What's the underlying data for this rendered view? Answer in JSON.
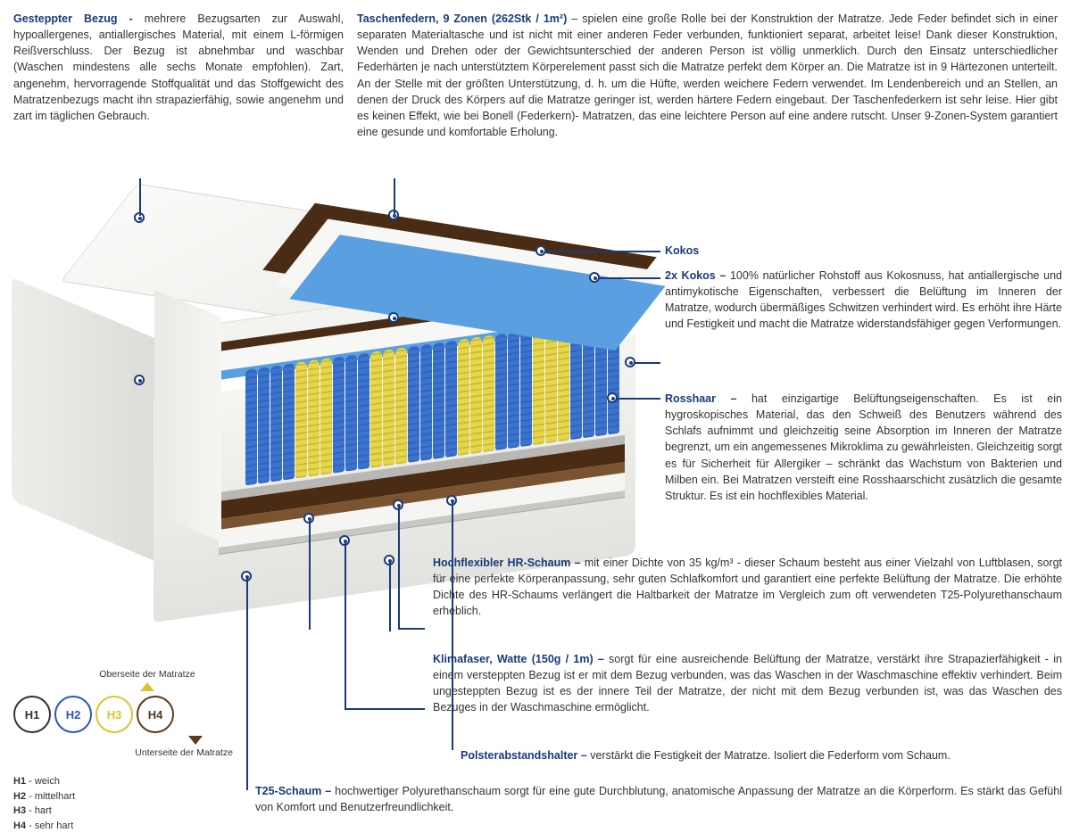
{
  "top_left": {
    "title": "Gesteppter Bezug -",
    "body": "mehrere Bezugsarten zur Auswahl, hypoallergenes, antiallergisches Material, mit einem L-förmigen Reißverschluss. Der Bezug ist abnehmbar und waschbar (Waschen mindestens alle sechs Monate empfohlen). Zart, angenehm, hervorragende Stoffqualität und das Stoffgewicht des Matratzenbezugs macht ihn strapazierfähig, sowie angenehm und zart im täglichen Gebrauch."
  },
  "top_right": {
    "title": "Taschenfedern, 9 Zonen (262Stk / 1m²)",
    "body": " – spielen eine große Rolle bei der Konstruktion der Matratze. Jede Feder befindet sich in einer separaten Materialtasche und ist nicht mit einer anderen Feder verbunden, funktioniert separat, arbeitet leise! Dank dieser Konstruktion, Wenden und Drehen oder der Gewichtsunterschied der anderen Person ist völlig unmerklich. Durch den Einsatz unterschiedlicher Federhärten je nach unterstütztem Körperelement passt sich die Matratze perfekt dem Körper an. Die Matratze ist in 9 Härtezonen unterteilt. An der Stelle mit der größten Unterstützung, d. h. um die Hüfte, werden weichere Federn verwendet. Im Lendenbereich und an Stellen, an denen der Druck des Körpers auf die Matratze geringer ist, werden härtere Federn eingebaut. Der Taschenfederkern ist sehr leise. Hier gibt es keinen Effekt, wie bei Bonell (Federkern)- Matratzen, das eine leichtere Person auf eine andere rutscht. Unser 9-Zonen-System garantiert eine gesunde und komfortable Erholung."
  },
  "callouts": {
    "kokos_single": "Kokos",
    "kokos2_title": "2x Kokos –",
    "kokos2_body": " 100% natürlicher Rohstoff aus Kokosnuss, hat antiallergische und antimykotische Eigenschaften, verbessert die Belüftung im Inneren der Matratze, wodurch übermäßiges Schwitzen verhindert wird. Es erhöht ihre Härte und Festigkeit und macht die Matratze widerstandsfähiger gegen Verformungen.",
    "rosshaar_title": "Rosshaar –",
    "rosshaar_body": " hat einzigartige Belüftungseigenschaften. Es ist ein hygroskopisches Material, das den Schweiß des Benutzers während des Schlafs aufnimmt und gleichzeitig seine Absorption im Inneren der Matratze begrenzt, um ein angemessenes Mikroklima zu gewährleisten. Gleichzeitig sorgt es für Sicherheit für Allergiker – schränkt das Wachstum von Bakterien und Milben ein. Bei Matratzen versteift eine Rosshaarschicht zusätzlich die gesamte Struktur. Es ist ein hochflexibles Material.",
    "hr_title": "Hochflexibler HR-Schaum –",
    "hr_body": " mit einer Dichte von 35 kg/m³ - dieser Schaum besteht aus einer Vielzahl von Luftblasen, sorgt für eine perfekte Körperanpassung, sehr guten Schlafkomfort und garantiert eine perfekte Belüftung der Matratze. Die erhöhte Dichte des HR-Schaums verlängert die Haltbarkeit der Matratze im Vergleich zum oft verwendeten T25-Polyurethanschaum erheblich.",
    "klima_title": "Klimafaser, Watte (150g / 1m) –",
    "klima_body": " sorgt für eine ausreichende Belüftung der Matratze, verstärkt ihre Strapazierfähigkeit - in einem versteppten Bezug ist er mit dem Bezug verbunden, was das Waschen in der Waschmaschine effektiv verhindert. Beim ungesteppten Bezug ist es der innere Teil der Matratze, der nicht mit dem Bezug verbunden ist, was das Waschen des Bezuges in der Waschmaschine ermöglicht.",
    "polster_title": "Polsterabstandshalter –",
    "polster_body": " verstärkt die Festigkeit der Matratze. Isoliert die Federform vom Schaum.",
    "t25_title": "T25-Schaum –",
    "t25_body": " hochwertiger Polyurethanschaum sorgt für eine gute Durchblutung, anatomische Anpassung der Matratze an die Körperform. Es stärkt das Gefühl von Komfort und Benutzerfreundlichkeit."
  },
  "firmness": {
    "top_label": "Oberseite der Matratze",
    "bottom_label": "Unterseite der Matratze",
    "circles": [
      {
        "code": "H1",
        "color": "#333333"
      },
      {
        "code": "H2",
        "color": "#2b55c4"
      },
      {
        "code": "H3",
        "color": "#d9c531"
      },
      {
        "code": "H4",
        "color": "#5a3a1f"
      }
    ],
    "legend": [
      {
        "code": "H1",
        "label": "weich"
      },
      {
        "code": "H2",
        "label": "mittelhart"
      },
      {
        "code": "H3",
        "label": "hart"
      },
      {
        "code": "H4",
        "label": "sehr hart"
      }
    ]
  },
  "colors": {
    "accent": "#1a3a7a",
    "cover": "#f2f2ef",
    "foam_white": "#f5f5f3",
    "kokos": "#4a2c14",
    "rosshaar": "#7a5330",
    "hr_foam": "#5aa0e0",
    "grey_felt": "#b9b8b4",
    "spring_blue": "#3a73d0",
    "spring_yellow": "#e7d648"
  },
  "diagram": {
    "spring_zone_pattern": [
      "b",
      "b",
      "b",
      "b",
      "y",
      "y",
      "y",
      "b",
      "b",
      "b",
      "y",
      "y",
      "y",
      "b",
      "b",
      "b",
      "b",
      "y",
      "y",
      "y",
      "b",
      "b",
      "b",
      "y",
      "y",
      "y",
      "b",
      "b",
      "b",
      "b"
    ]
  }
}
